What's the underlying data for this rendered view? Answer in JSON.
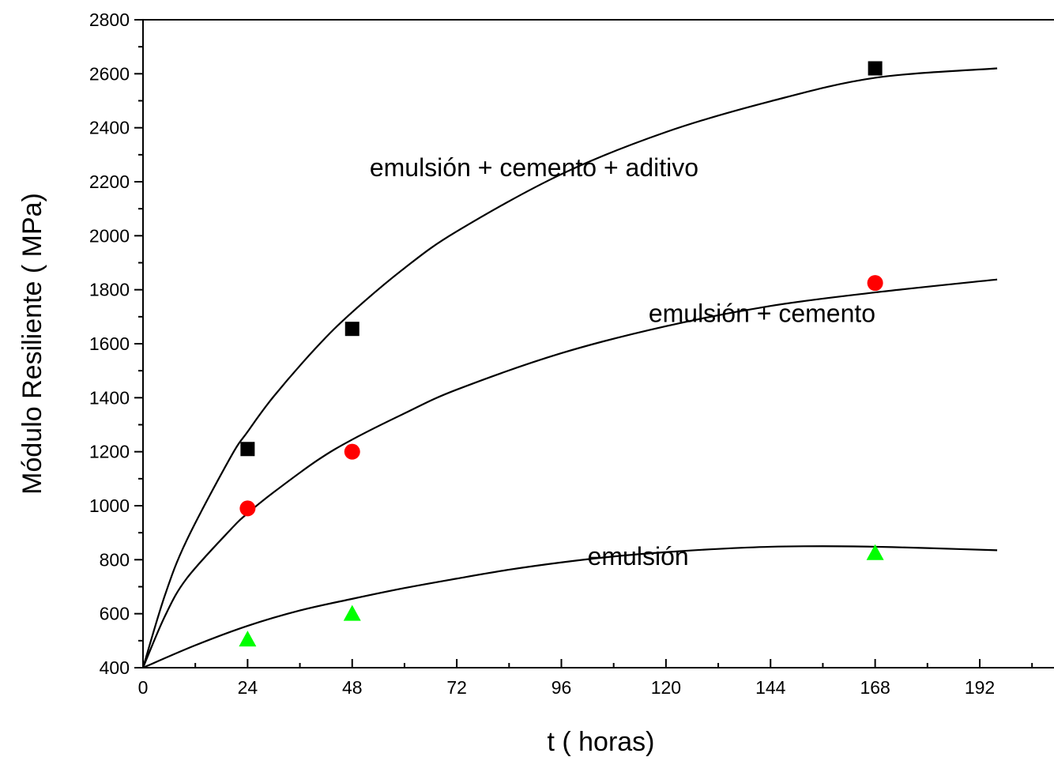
{
  "chart_data": {
    "type": "scatter",
    "xlabel": "t ( horas)",
    "ylabel": "Módulo Resiliente ( MPa)",
    "xlim": [
      0,
      210
    ],
    "ylim": [
      400,
      2800
    ],
    "x_ticks": [
      0,
      24,
      48,
      72,
      96,
      120,
      144,
      168,
      192
    ],
    "y_ticks": [
      400,
      600,
      800,
      1000,
      1200,
      1400,
      1600,
      1800,
      2000,
      2200,
      2400,
      2600,
      2800
    ],
    "grid": false,
    "series": [
      {
        "name": "emulsión + cemento + aditivo",
        "marker": "square",
        "color": "#000000",
        "x": [
          24,
          48,
          168
        ],
        "y": [
          1210,
          1655,
          2620
        ]
      },
      {
        "name": "emulsión + cemento",
        "marker": "circle",
        "color": "#ff0000",
        "x": [
          24,
          48,
          168
        ],
        "y": [
          990,
          1200,
          1825
        ]
      },
      {
        "name": "emulsión",
        "marker": "triangle",
        "color": "#00ff00",
        "x": [
          24,
          48,
          168
        ],
        "y": [
          505,
          600,
          825
        ]
      }
    ],
    "fit_curves": [
      {
        "x": [
          0,
          5,
          10,
          20,
          24,
          30,
          40,
          48,
          60,
          72,
          96,
          120,
          144,
          168,
          196
        ],
        "y": [
          400,
          667,
          871,
          1177,
          1274,
          1405,
          1590,
          1717,
          1880,
          2016,
          2228,
          2384,
          2498,
          2585,
          2620
        ]
      },
      {
        "x": [
          0,
          5,
          10,
          20,
          24,
          30,
          40,
          48,
          60,
          72,
          96,
          120,
          144,
          168,
          196
        ],
        "y": [
          400,
          590,
          730,
          910,
          972,
          1050,
          1168,
          1245,
          1342,
          1430,
          1565,
          1665,
          1740,
          1790,
          1838
        ]
      },
      {
        "x": [
          0,
          12,
          24,
          36,
          48,
          60,
          72,
          84,
          96,
          108,
          120,
          132,
          144,
          156,
          168,
          180,
          196
        ],
        "y": [
          400,
          483,
          555,
          612,
          655,
          695,
          730,
          763,
          790,
          812,
          828,
          840,
          848,
          850,
          848,
          843,
          835
        ]
      }
    ],
    "annotations": [
      {
        "text": "emulsión + cemento + aditivo",
        "x": 52,
        "y": 2220
      },
      {
        "text": "emulsión + cemento",
        "x": 116,
        "y": 1680
      },
      {
        "text": "emulsión",
        "x": 102,
        "y": 780
      }
    ]
  }
}
